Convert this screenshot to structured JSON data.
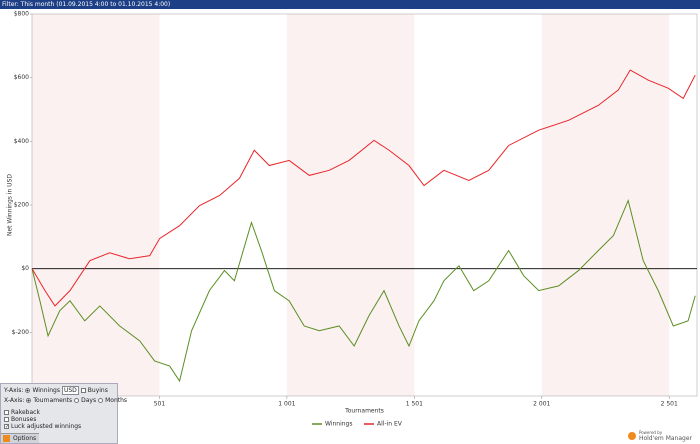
{
  "filter": "Filter: This month (01.09.2015 4:00 to 01.10.2015 4:00)",
  "chart_data": {
    "type": "line",
    "y_label": "Net Winnings in USD",
    "x_label": "Tournaments",
    "xlim": [
      1,
      2610
    ],
    "ylim": [
      -400,
      800
    ],
    "xticks": [
      501,
      {
        "value": 1001,
        "label": "1 001"
      },
      {
        "value": 1501,
        "label": "1 501"
      },
      {
        "value": 2001,
        "label": "2 001"
      },
      {
        "value": 2501,
        "label": "2 501"
      }
    ],
    "yticks": [
      {
        "value": -200,
        "label": "$-200"
      },
      {
        "value": 0,
        "label": "$0"
      },
      {
        "value": 200,
        "label": "$200"
      },
      {
        "value": 400,
        "label": "$400"
      },
      {
        "value": 600,
        "label": "$600"
      },
      {
        "value": 800,
        "label": "$800"
      }
    ],
    "series": [
      {
        "name": "Winnings",
        "color": "#5b8f22",
        "x": [
          1,
          32,
          64,
          110,
          150,
          208,
          267,
          345,
          424,
          482,
          541,
          580,
          627,
          697,
          756,
          795,
          862,
          901,
          952,
          1010,
          1069,
          1128,
          1206,
          1265,
          1323,
          1382,
          1441,
          1480,
          1519,
          1578,
          1617,
          1676,
          1734,
          1793,
          1871,
          1930,
          1989,
          2067,
          2145,
          2223,
          2282,
          2340,
          2399,
          2458,
          2517,
          2575,
          2603
        ],
        "values": [
          0,
          -101,
          -211,
          -132,
          -101,
          -164,
          -117,
          -180,
          -227,
          -290,
          -306,
          -353,
          -195,
          -69,
          -6,
          -38,
          145,
          57,
          -69,
          -101,
          -180,
          -195,
          -180,
          -243,
          -148,
          -69,
          -180,
          -243,
          -164,
          -101,
          -38,
          9,
          -69,
          -38,
          57,
          -22,
          -69,
          -54,
          -6,
          57,
          104,
          214,
          25,
          -69,
          -180,
          -164,
          -85
        ]
      },
      {
        "name": "All-in EV",
        "color": "#e8262b",
        "x": [
          1,
          52,
          91,
          150,
          228,
          306,
          384,
          463,
          502,
          580,
          658,
          737,
          815,
          873,
          932,
          1010,
          1089,
          1167,
          1245,
          1343,
          1402,
          1480,
          1539,
          1617,
          1715,
          1793,
          1871,
          1989,
          2106,
          2223,
          2301,
          2348,
          2419,
          2497,
          2556,
          2603
        ],
        "values": [
          0,
          -69,
          -117,
          -69,
          25,
          50,
          31,
          41,
          95,
          135,
          198,
          230,
          284,
          372,
          324,
          340,
          293,
          309,
          340,
          403,
          372,
          324,
          261,
          309,
          277,
          309,
          387,
          435,
          466,
          513,
          561,
          624,
          592,
          567,
          535,
          608
        ]
      }
    ]
  },
  "options": {
    "y_axis": "Y-Axis:",
    "winnings": "Winnings",
    "currency": "USD",
    "buyins": "Buyins",
    "x_axis": "X-Axis:",
    "tournaments": "Tournaments",
    "days": "Days",
    "months": "Months",
    "rakeback": "Rakeback",
    "bonuses": "Bonuses",
    "luck": "Luck adjusted winnings",
    "button": "Options"
  },
  "branding": {
    "powered": "Powered by",
    "product": "Hold'em Manager"
  }
}
